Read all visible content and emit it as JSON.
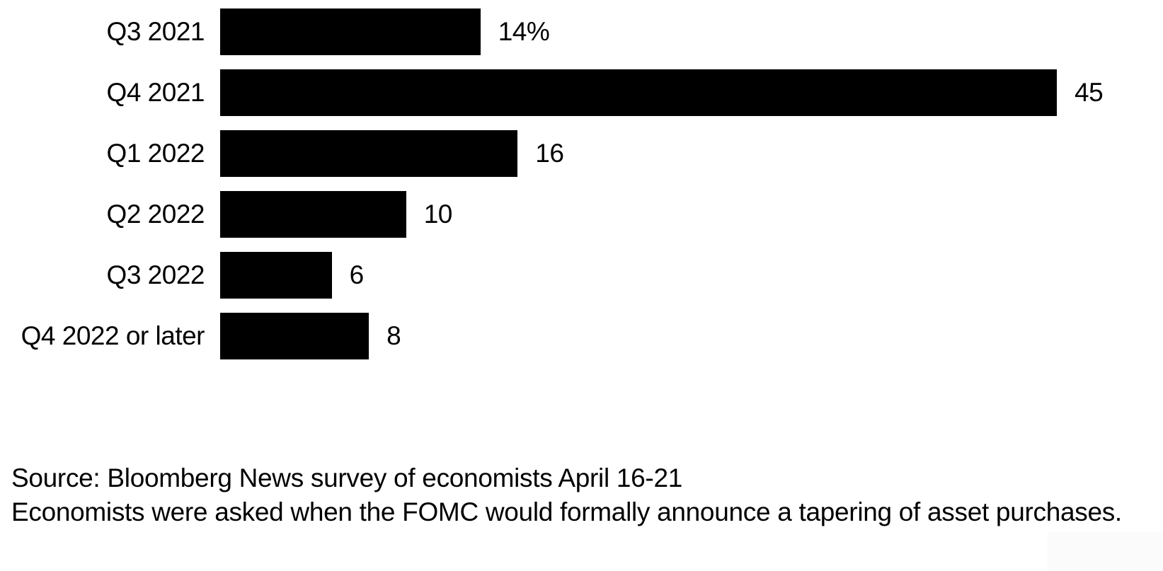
{
  "chart_data": {
    "type": "bar",
    "orientation": "horizontal",
    "title": "",
    "xlabel": "",
    "ylabel": "",
    "grid": false,
    "legend": false,
    "xlim": [
      0,
      45
    ],
    "categories": [
      "Q3 2021",
      "Q4 2021",
      "Q1 2022",
      "Q2 2022",
      "Q3 2022",
      "Q4 2022 or later"
    ],
    "values": [
      14,
      45,
      16,
      10,
      6,
      8
    ],
    "value_labels": [
      "14%",
      "45",
      "16",
      "10",
      "6",
      "8"
    ],
    "bar_color": "#000000",
    "background_color": "#ffffff",
    "text_color": "#000000"
  },
  "footer": {
    "source_line": "Source: Bloomberg News survey of economists April 16-21",
    "note_line": "Economists were asked when the FOMC would formally announce a tapering of asset purchases."
  }
}
